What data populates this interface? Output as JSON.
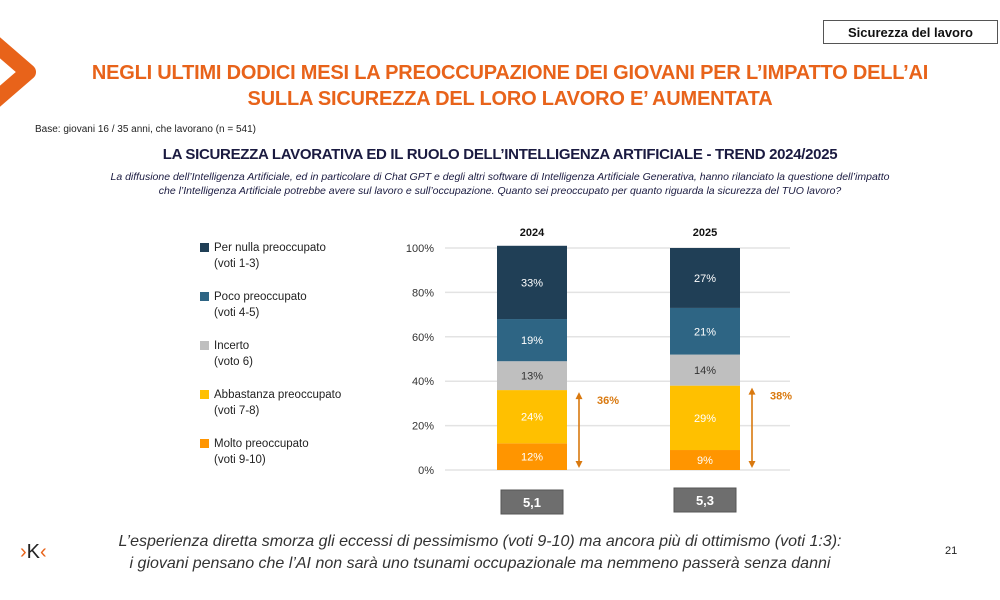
{
  "header": {
    "tag": "Sicurezza del lavoro",
    "title_line1": "NEGLI ULTIMI DODICI MESI LA PREOCCUPAZIONE DEI GIOVANI PER L’IMPATTO DELL’AI",
    "title_line2": "SULLA SICUREZZA DEL LORO LAVORO E’ AUMENTATA",
    "base_note": "Base: giovani 16 / 35 anni, che lavorano (n = 541)",
    "subtitle": "LA SICUREZZA LAVORATIVA ED IL RUOLO DELL’INTELLIGENZA ARTIFICIALE - TREND 2024/2025",
    "question_line1": "La diffusione dell’Intelligenza Artificiale, ed in particolare di Chat GPT e degli altri software di Intelligenza Artificiale Generativa, hanno rilanciato la questione dell’impatto",
    "question_line2": "che l’Intelligenza Artificiale potrebbe avere sul lavoro e sull’occupazione. Quanto sei preoccupato per quanto riguarda la sicurezza del TUO lavoro?"
  },
  "legend": [
    {
      "label": "Per nulla preoccupato",
      "sub": "(voti 1-3)",
      "color": "#203F56"
    },
    {
      "label": "Poco preoccupato",
      "sub": "(voti 4-5)",
      "color": "#2E6584"
    },
    {
      "label": "Incerto",
      "sub": "(voto 6)",
      "color": "#BFBFBF"
    },
    {
      "label": "Abbastanza preoccupato",
      "sub": "(voti 7-8)",
      "color": "#FFC000"
    },
    {
      "label": "Molto preoccupato",
      "sub": "(voti 9-10)",
      "color": "#FF9500"
    }
  ],
  "chart_data": {
    "type": "bar",
    "stacked": true,
    "title": "LA SICUREZZA LAVORATIVA ED IL RUOLO DELL’INTELLIGENZA ARTIFICIALE - TREND 2024/2025",
    "categories": [
      "2024",
      "2025"
    ],
    "series": [
      {
        "name": "Molto preoccupato (voti 9-10)",
        "color": "#FF9500",
        "label_color": "#ffffff",
        "values": [
          12,
          9
        ]
      },
      {
        "name": "Abbastanza preoccupato (voti 7-8)",
        "color": "#FFC000",
        "label_color": "#ffffff",
        "values": [
          24,
          29
        ]
      },
      {
        "name": "Incerto (voto 6)",
        "color": "#BFBFBF",
        "label_color": "#333333",
        "values": [
          13,
          14
        ]
      },
      {
        "name": "Poco preoccupato (voti 4-5)",
        "color": "#2E6584",
        "label_color": "#ffffff",
        "values": [
          19,
          21
        ]
      },
      {
        "name": "Per nulla preoccupato (voti 1-3)",
        "color": "#203F56",
        "label_color": "#ffffff",
        "values": [
          33,
          27
        ]
      }
    ],
    "y_ticks": [
      "0%",
      "20%",
      "40%",
      "60%",
      "80%",
      "100%"
    ],
    "ylim": [
      0,
      100
    ],
    "grid": true,
    "legend_position": "left",
    "annotations": [
      {
        "category": "2024",
        "text": "36%",
        "spans": "Molto + Abbastanza preoccupato",
        "color": "#D9790F"
      },
      {
        "category": "2025",
        "text": "38%",
        "spans": "Molto + Abbastanza preoccupato",
        "color": "#D9790F"
      }
    ],
    "mean_scores": [
      {
        "category": "2024",
        "value": "5,1"
      },
      {
        "category": "2025",
        "value": "5,3"
      }
    ]
  },
  "footer": {
    "logo_left": "›",
    "logo_mid": "K",
    "logo_right": "‹",
    "text_line1": "L’esperienza diretta smorza gli eccessi di pessimismo (voti 9-10) ma ancora più di ottimismo (voti 1:3):",
    "text_line2": "i giovani pensano che l’AI non sarà uno tsunami occupazionale ma nemmeno passerà senza danni",
    "page_number": "21"
  }
}
